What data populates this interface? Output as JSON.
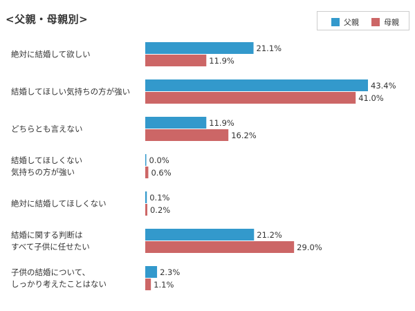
{
  "chart_data": {
    "type": "bar",
    "orientation": "horizontal",
    "title": "<父親・母親別>",
    "categories": [
      [
        "絶対に結婚して欲しい"
      ],
      [
        "結婚してほしい気持ちの方が強い"
      ],
      [
        "どちらとも言えない"
      ],
      [
        "結婚してほしくない",
        "気持ちの方が強い"
      ],
      [
        "絶対に結婚してほしくない"
      ],
      [
        "結婚に関する判断は",
        "すべて子供に任せたい"
      ],
      [
        "子供の結婚について、",
        "しっかり考えたことはない"
      ]
    ],
    "series": [
      {
        "name": "父親",
        "color": "#3399cc",
        "values": [
          21.1,
          43.4,
          11.9,
          0.0,
          0.1,
          21.2,
          2.3
        ],
        "labels": [
          "21.1%",
          "43.4%",
          "11.9%",
          "0.0%",
          "0.1%",
          "21.2%",
          "2.3%"
        ]
      },
      {
        "name": "母親",
        "color": "#cc6666",
        "values": [
          11.9,
          41.0,
          16.2,
          0.6,
          0.2,
          29.0,
          1.1
        ],
        "labels": [
          "11.9%",
          "41.0%",
          "16.2%",
          "0.6%",
          "0.2%",
          "29.0%",
          "1.1%"
        ]
      }
    ],
    "unit": "%",
    "legend_position": "top-right",
    "grid": false
  }
}
